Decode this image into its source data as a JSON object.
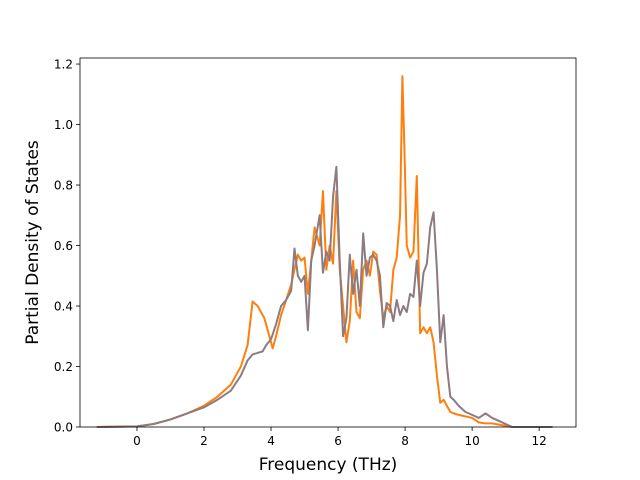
{
  "chart_data": {
    "type": "line",
    "title": "",
    "xlabel": "Frequency (THz)",
    "ylabel": "Partial Density of States",
    "xlim": [
      -1.7,
      13.1
    ],
    "ylim": [
      0.0,
      1.22
    ],
    "x_ticks": [
      0,
      2,
      4,
      6,
      8,
      10,
      12
    ],
    "y_ticks": [
      0.0,
      0.2,
      0.4,
      0.6,
      0.8,
      1.0,
      1.2
    ],
    "x_tick_labels": [
      "0",
      "2",
      "4",
      "6",
      "8",
      "10",
      "12"
    ],
    "y_tick_labels": [
      "0.0",
      "0.2",
      "0.4",
      "0.6",
      "0.8",
      "1.0",
      "1.2"
    ],
    "grid": false,
    "legend": false,
    "series": [
      {
        "color": "#ff7f0e",
        "x": [
          -1.2,
          0.0,
          0.5,
          1.0,
          1.5,
          2.0,
          2.4,
          2.8,
          3.1,
          3.3,
          3.45,
          3.6,
          3.8,
          3.95,
          4.05,
          4.15,
          4.3,
          4.45,
          4.6,
          4.7,
          4.8,
          4.9,
          5.0,
          5.1,
          5.2,
          5.3,
          5.45,
          5.55,
          5.65,
          5.75,
          5.85,
          5.95,
          6.05,
          6.15,
          6.25,
          6.35,
          6.45,
          6.55,
          6.65,
          6.75,
          6.85,
          6.95,
          7.05,
          7.15,
          7.25,
          7.35,
          7.45,
          7.55,
          7.65,
          7.75,
          7.85,
          7.92,
          7.98,
          8.05,
          8.15,
          8.25,
          8.35,
          8.45,
          8.55,
          8.65,
          8.75,
          8.85,
          8.95,
          9.05,
          9.15,
          9.25,
          9.35,
          9.45,
          9.6,
          9.8,
          10.0,
          10.2,
          10.4,
          10.6,
          10.8,
          11.0,
          11.2,
          12.4
        ],
        "y": [
          0.0,
          0.002,
          0.01,
          0.025,
          0.045,
          0.07,
          0.1,
          0.14,
          0.2,
          0.27,
          0.415,
          0.4,
          0.36,
          0.3,
          0.26,
          0.3,
          0.37,
          0.42,
          0.47,
          0.52,
          0.57,
          0.55,
          0.56,
          0.44,
          0.55,
          0.66,
          0.6,
          0.78,
          0.52,
          0.6,
          0.54,
          0.78,
          0.52,
          0.4,
          0.28,
          0.35,
          0.55,
          0.38,
          0.36,
          0.52,
          0.55,
          0.5,
          0.58,
          0.57,
          0.45,
          0.36,
          0.4,
          0.38,
          0.52,
          0.56,
          0.7,
          1.16,
          0.92,
          0.6,
          0.56,
          0.58,
          0.83,
          0.31,
          0.33,
          0.31,
          0.33,
          0.28,
          0.17,
          0.08,
          0.09,
          0.07,
          0.05,
          0.045,
          0.04,
          0.035,
          0.03,
          0.015,
          0.012,
          0.012,
          0.008,
          0.004,
          0.0,
          0.0
        ]
      },
      {
        "color": "#8c7b80",
        "x": [
          -1.2,
          0.0,
          0.5,
          1.0,
          1.5,
          2.0,
          2.4,
          2.8,
          3.1,
          3.3,
          3.45,
          3.6,
          3.75,
          3.85,
          4.0,
          4.15,
          4.3,
          4.45,
          4.6,
          4.7,
          4.8,
          4.9,
          5.0,
          5.1,
          5.2,
          5.3,
          5.45,
          5.55,
          5.65,
          5.75,
          5.85,
          5.95,
          6.05,
          6.15,
          6.25,
          6.35,
          6.45,
          6.55,
          6.65,
          6.75,
          6.85,
          6.95,
          7.05,
          7.15,
          7.25,
          7.35,
          7.45,
          7.55,
          7.65,
          7.75,
          7.85,
          7.95,
          8.05,
          8.15,
          8.25,
          8.35,
          8.45,
          8.55,
          8.65,
          8.75,
          8.85,
          8.95,
          9.05,
          9.15,
          9.25,
          9.35,
          9.45,
          9.6,
          9.8,
          10.0,
          10.2,
          10.4,
          10.6,
          10.8,
          11.0,
          11.2,
          12.4
        ],
        "y": [
          0.0,
          0.002,
          0.01,
          0.025,
          0.045,
          0.065,
          0.09,
          0.12,
          0.17,
          0.22,
          0.24,
          0.245,
          0.25,
          0.27,
          0.29,
          0.34,
          0.4,
          0.42,
          0.45,
          0.59,
          0.5,
          0.48,
          0.5,
          0.32,
          0.55,
          0.6,
          0.7,
          0.51,
          0.58,
          0.55,
          0.76,
          0.86,
          0.55,
          0.3,
          0.36,
          0.57,
          0.44,
          0.52,
          0.4,
          0.64,
          0.5,
          0.56,
          0.57,
          0.55,
          0.5,
          0.33,
          0.41,
          0.4,
          0.35,
          0.42,
          0.37,
          0.4,
          0.38,
          0.44,
          0.43,
          0.55,
          0.4,
          0.51,
          0.54,
          0.66,
          0.71,
          0.52,
          0.28,
          0.37,
          0.2,
          0.1,
          0.09,
          0.07,
          0.05,
          0.04,
          0.03,
          0.045,
          0.03,
          0.02,
          0.01,
          0.0,
          0.0
        ]
      }
    ]
  }
}
